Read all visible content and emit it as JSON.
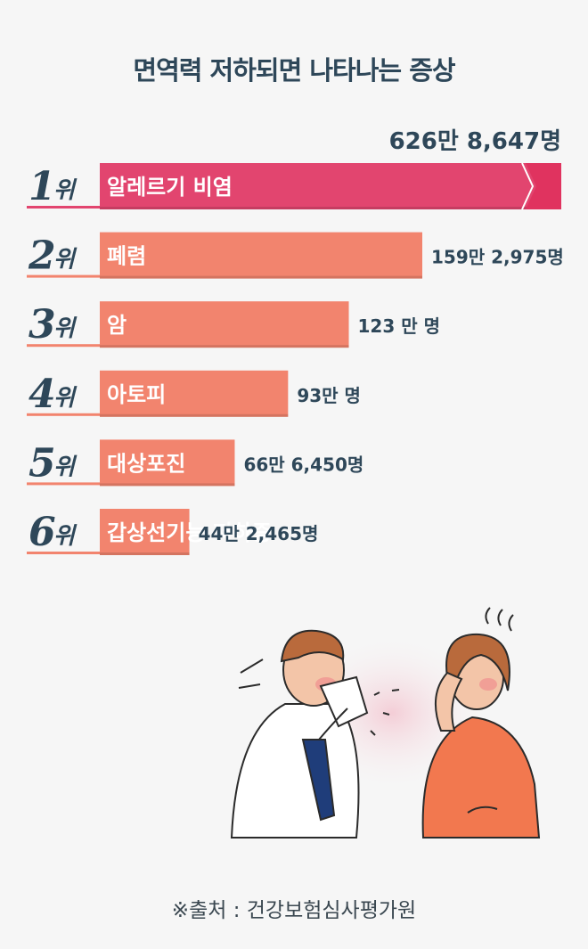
{
  "title": "면역력 저하되면 나타나는 증상",
  "source": "※출처 : 건강보험심사평가원",
  "colors": {
    "title": "#2e4759",
    "rank_text": "#2e4759",
    "value_text": "#2e4759",
    "top_bar": "#e2456f",
    "top_bar_tip": "#e0335f",
    "bar": "#f2846e",
    "underline_top": "#e2456f",
    "underline": "#f2846e"
  },
  "chart_data": {
    "type": "bar",
    "orientation": "horizontal",
    "title": "면역력 저하되면 나타나는 증상",
    "categories": [
      "알레르기 비염",
      "폐렴",
      "암",
      "아토피",
      "대상포진",
      "갑상선기능 저하증"
    ],
    "ranks": [
      "1위",
      "2위",
      "3위",
      "4위",
      "5위",
      "6위"
    ],
    "values": [
      6268647,
      1592975,
      1230000,
      930000,
      666450,
      442465
    ],
    "value_labels": [
      "626만 8,647명",
      "159만 2,975명",
      "123 만 명",
      "93만 명",
      "66만 6,450명",
      "44만 2,465명"
    ],
    "unit": "명",
    "axis_break_on_first_bar": true
  }
}
